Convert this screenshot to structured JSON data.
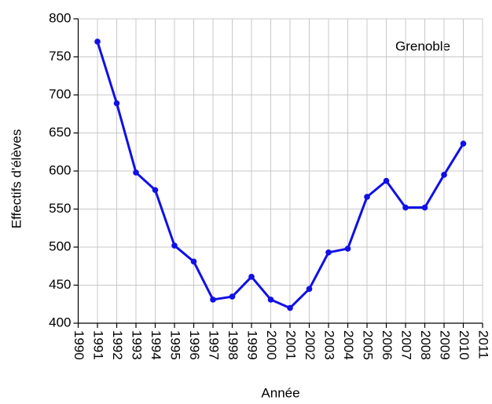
{
  "chart_data": {
    "type": "line",
    "annotation": "Grenoble",
    "xlabel": "Année",
    "ylabel": "Effectifs d'élèves",
    "x": [
      1991,
      1992,
      1993,
      1994,
      1995,
      1996,
      1997,
      1998,
      1999,
      2000,
      2001,
      2002,
      2003,
      2004,
      2005,
      2006,
      2007,
      2008,
      2009,
      2010
    ],
    "series": [
      {
        "color": "#1010e6",
        "values": [
          770,
          689,
          598,
          575,
          502,
          481,
          431,
          435,
          461,
          431,
          420,
          445,
          493,
          498,
          566,
          587,
          552,
          552,
          595,
          636
        ]
      }
    ],
    "xlim": [
      1990,
      2011
    ],
    "xticks": [
      1990,
      1991,
      1992,
      1993,
      1994,
      1995,
      1996,
      1997,
      1998,
      1999,
      2000,
      2001,
      2002,
      2003,
      2004,
      2005,
      2006,
      2007,
      2008,
      2009,
      2010,
      2011
    ],
    "ylim": [
      400,
      800
    ],
    "yticks": [
      400,
      450,
      500,
      550,
      600,
      650,
      700,
      750,
      800
    ],
    "grid": true
  }
}
